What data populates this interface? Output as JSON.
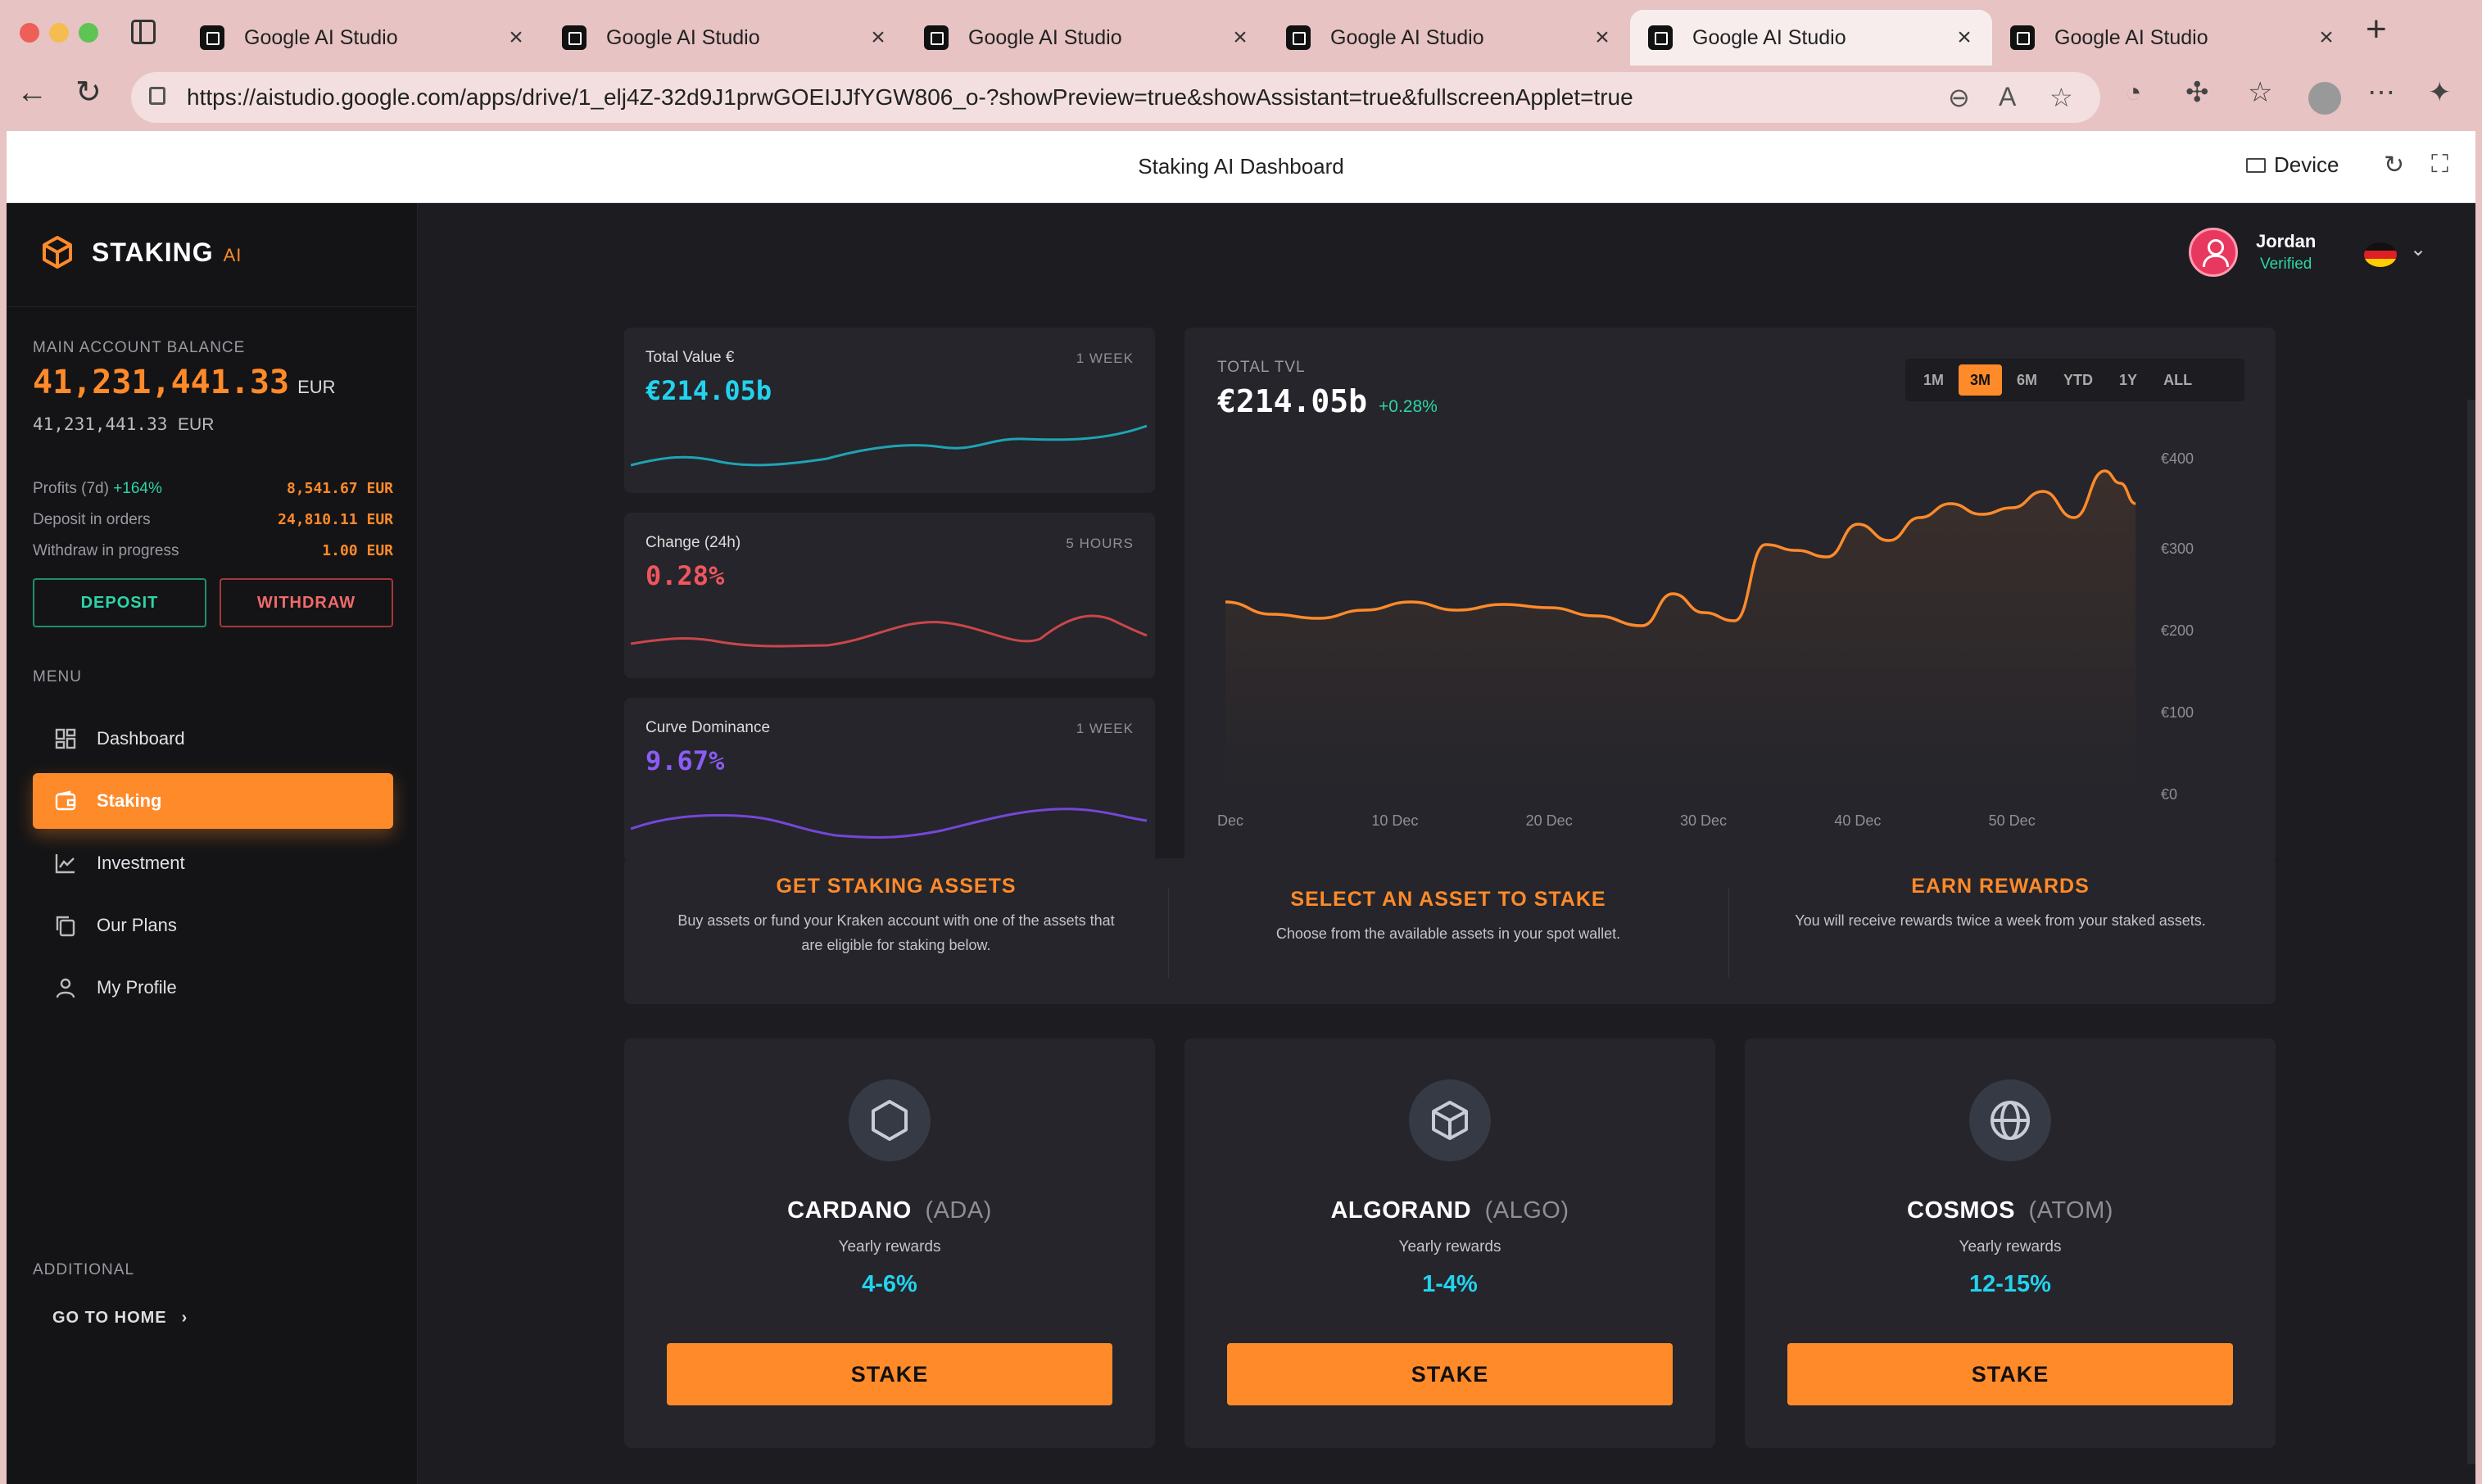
{
  "browser": {
    "tabs": [
      {
        "title": "Google AI Studio",
        "active": false
      },
      {
        "title": "Google AI Studio",
        "active": false
      },
      {
        "title": "Google AI Studio",
        "active": false
      },
      {
        "title": "Google AI Studio",
        "active": false
      },
      {
        "title": "Google AI Studio",
        "active": true
      },
      {
        "title": "Google AI Studio",
        "active": false
      }
    ],
    "url": "https://aistudio.google.com/apps/drive/1_elj4Z-32d9J1prwGOEIJJfYGW806_o-?showPreview=true&showAssistant=true&fullscreenApplet=true"
  },
  "frame": {
    "title": "Staking AI Dashboard",
    "device_label": "Device"
  },
  "sidebar": {
    "logo": {
      "name": "STAKING",
      "suffix": "AI"
    },
    "balance": {
      "label": "MAIN ACCOUNT BALANCE",
      "value": "41,231,441.33",
      "unit": "EUR",
      "sub_value": "41,231,441.33",
      "sub_unit": "EUR"
    },
    "stats": {
      "profits": {
        "label": "Profits (7d)",
        "pct": "+164%",
        "value": "8,541.67 EUR"
      },
      "deposit": {
        "label": "Deposit in orders",
        "value": "24,810.11 EUR"
      },
      "withdraw": {
        "label": "Withdraw in progress",
        "value": "1.00 EUR"
      }
    },
    "deposit_label": "DEPOSIT",
    "withdraw_label": "WITHDRAW",
    "menu_label": "MENU",
    "menu": [
      {
        "label": "Dashboard",
        "icon": "grid-icon"
      },
      {
        "label": "Staking",
        "icon": "wallet-icon",
        "active": true
      },
      {
        "label": "Investment",
        "icon": "chart-line-icon"
      },
      {
        "label": "Our Plans",
        "icon": "copy-icon"
      },
      {
        "label": "My Profile",
        "icon": "user-icon"
      }
    ],
    "additional_label": "ADDITIONAL",
    "go_home_label": "GO TO HOME"
  },
  "user": {
    "name": "Jordan",
    "status": "Verified",
    "flag": "germany-flag-icon"
  },
  "mini_cards": [
    {
      "title": "Total Value €",
      "period": "1 WEEK",
      "value": "€214.05b",
      "color": "#22d3ee",
      "line_color": "#1fa3b3"
    },
    {
      "title": "Change (24h)",
      "period": "5 HOURS",
      "value": "0.28%",
      "color": "#f0555d",
      "line_color": "#c9464b"
    },
    {
      "title": "Curve Dominance",
      "period": "1 WEEK",
      "value": "9.67%",
      "color": "#8b5cf6",
      "line_color": "#7447d6"
    }
  ],
  "tvl": {
    "label": "TOTAL TVL",
    "value": "€214.05b",
    "change": "+0.28%",
    "ranges": [
      "1M",
      "3M",
      "6M",
      "YTD",
      "1Y",
      "ALL"
    ],
    "active_range": "3M"
  },
  "chart_data": {
    "type": "area",
    "x_ticks": [
      "Dec",
      "10 Dec",
      "20 Dec",
      "30 Dec",
      "40 Dec",
      "50 Dec"
    ],
    "y_ticks": [
      "€400",
      "€300",
      "€200",
      "€100",
      "€0"
    ],
    "ylim": [
      0,
      400
    ],
    "color": "#ff8a2a",
    "x": [
      0,
      3,
      6,
      9,
      12,
      15,
      18,
      21,
      24,
      27,
      29,
      31,
      33,
      35,
      37,
      39,
      41,
      43,
      45,
      47,
      49,
      51,
      53,
      55,
      57,
      58,
      59
    ],
    "values": [
      235,
      220,
      215,
      225,
      235,
      225,
      232,
      228,
      218,
      206,
      245,
      222,
      212,
      305,
      298,
      290,
      330,
      310,
      338,
      355,
      342,
      350,
      370,
      338,
      395,
      380,
      355
    ]
  },
  "steps": [
    {
      "title": "GET STAKING ASSETS",
      "desc": "Buy assets or fund your Kraken account with one of the assets that are eligible for staking below."
    },
    {
      "title": "SELECT AN ASSET TO STAKE",
      "desc": "Choose from the available assets in your spot wallet."
    },
    {
      "title": "EARN REWARDS",
      "desc": "You will receive rewards twice a week from your staked assets."
    }
  ],
  "assets": [
    {
      "name": "CARDANO",
      "ticker": "(ADA)",
      "rewards_label": "Yearly rewards",
      "rewards": "4-6%",
      "button": "STAKE",
      "icon": "hexagon-icon"
    },
    {
      "name": "ALGORAND",
      "ticker": "(ALGO)",
      "rewards_label": "Yearly rewards",
      "rewards": "1-4%",
      "button": "STAKE",
      "icon": "cube-icon"
    },
    {
      "name": "COSMOS",
      "ticker": "(ATOM)",
      "rewards_label": "Yearly rewards",
      "rewards": "12-15%",
      "button": "STAKE",
      "icon": "globe-icon"
    }
  ]
}
